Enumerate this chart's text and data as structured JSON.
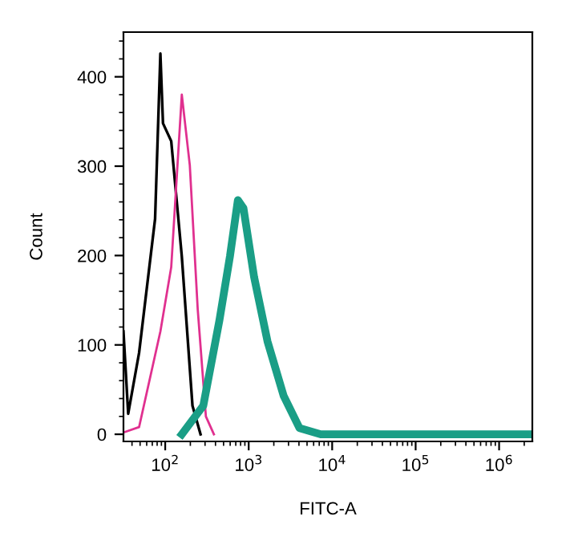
{
  "chart_data": {
    "type": "line",
    "xlabel": "FITC-A",
    "ylabel": "Count",
    "log": "x",
    "grid": false,
    "legend": false,
    "marker": "none",
    "line_style": "solid",
    "xlim": [
      31.6,
      2500000
    ],
    "ylim": [
      -8,
      450
    ],
    "xticks": [
      {
        "value": 100,
        "label": "10$^{2}$"
      },
      {
        "value": 1000,
        "label": "10$^{3}$"
      },
      {
        "value": 10000,
        "label": "10$^{4}$"
      },
      {
        "value": 100000,
        "label": "10$^{5}$"
      },
      {
        "value": 1000000,
        "label": "10$^{6}$"
      }
    ],
    "yticks": [
      0,
      100,
      200,
      300,
      400
    ],
    "series": [
      {
        "color": "#000000",
        "x": [
          31.6,
          36,
          48.6,
          75.6,
          87.5,
          94,
          118,
          158,
          212,
          265
        ],
        "values": [
          115,
          23,
          91,
          241,
          426,
          348,
          328,
          199,
          32,
          0
        ]
      },
      {
        "color": "#e0308f",
        "x": [
          31.6,
          48.6,
          87.5,
          118,
          158,
          197,
          245,
          307,
          383
        ],
        "values": [
          2,
          8,
          115,
          187,
          380,
          301,
          140,
          20,
          0
        ]
      },
      {
        "color": "#1a9e86",
        "x": [
          158,
          286,
          445,
          596,
          742,
          865,
          1160,
          1680,
          2620,
          4060,
          7290,
          11400,
          2500000
        ],
        "values": [
          0,
          32,
          127,
          199,
          262,
          253,
          176,
          104,
          43,
          7,
          0,
          0,
          0
        ]
      }
    ]
  }
}
